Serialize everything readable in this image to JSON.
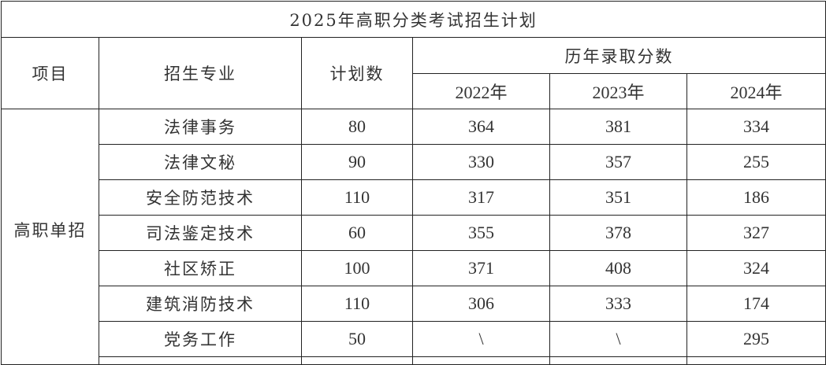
{
  "title": "2025年高职分类考试招生计划",
  "headers": {
    "item": "项目",
    "major": "招生专业",
    "plan": "计划数",
    "scores": "历年录取分数",
    "years": [
      "2022年",
      "2023年",
      "2024年"
    ]
  },
  "category": "高职单招",
  "rows": [
    {
      "major": "法律事务",
      "plan": "80",
      "s2022": "364",
      "s2023": "381",
      "s2024": "334"
    },
    {
      "major": "法律文秘",
      "plan": "90",
      "s2022": "330",
      "s2023": "357",
      "s2024": "255"
    },
    {
      "major": "安全防范技术",
      "plan": "110",
      "s2022": "317",
      "s2023": "351",
      "s2024": "186"
    },
    {
      "major": "司法鉴定技术",
      "plan": "60",
      "s2022": "355",
      "s2023": "378",
      "s2024": "327"
    },
    {
      "major": "社区矫正",
      "plan": "100",
      "s2022": "371",
      "s2023": "408",
      "s2024": "324"
    },
    {
      "major": "建筑消防技术",
      "plan": "110",
      "s2022": "306",
      "s2023": "333",
      "s2024": "174"
    },
    {
      "major": "党务工作",
      "plan": "50",
      "s2022": "\\",
      "s2023": "\\",
      "s2024": "295"
    }
  ]
}
